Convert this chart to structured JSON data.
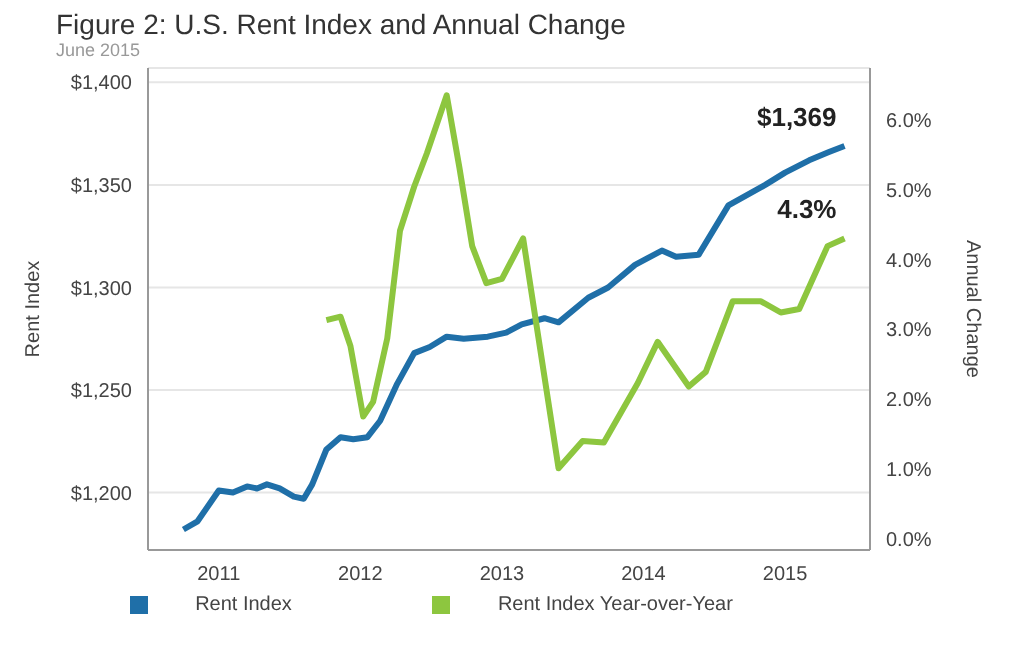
{
  "chart_data": {
    "type": "line",
    "title": "Figure 2: U.S. Rent Index and Annual Change",
    "subtitle": "June 2015",
    "ylabel": "Rent Index",
    "y2label": "Annual Change",
    "xlim": [
      2010.5,
      2015.6
    ],
    "xticks": [
      2011,
      2012,
      2013,
      2014,
      2015
    ],
    "ylim": [
      1172,
      1407
    ],
    "yticks": [
      {
        "value": 1200,
        "label": "$1,200"
      },
      {
        "value": 1250,
        "label": "$1,250"
      },
      {
        "value": 1300,
        "label": "$1,300"
      },
      {
        "value": 1350,
        "label": "$1,350"
      },
      {
        "value": 1400,
        "label": "$1,400"
      }
    ],
    "y2lim": [
      -0.16,
      6.74
    ],
    "y2ticks": [
      {
        "value": 0,
        "label": "0.0%"
      },
      {
        "value": 1,
        "label": "1.0%"
      },
      {
        "value": 2,
        "label": "2.0%"
      },
      {
        "value": 3,
        "label": "3.0%"
      },
      {
        "value": 4,
        "label": "4.0%"
      },
      {
        "value": 5,
        "label": "5.0%"
      },
      {
        "value": 6,
        "label": "6.0%"
      }
    ],
    "grid": "y",
    "legend": "bottom",
    "marker": "none",
    "line_style": "solid",
    "series": [
      {
        "name": "Rent Index",
        "color": "#1f6fa8",
        "x": [
          2010.75,
          2010.85,
          2011.0,
          2011.1,
          2011.2,
          2011.27,
          2011.34,
          2011.43,
          2011.53,
          2011.6,
          2011.66,
          2011.76,
          2011.86,
          2011.95,
          2012.05,
          2012.14,
          2012.26,
          2012.38,
          2012.49,
          2012.61,
          2012.73,
          2012.9,
          2013.03,
          2013.14,
          2013.3,
          2013.4,
          2013.61,
          2013.75,
          2013.94,
          2014.13,
          2014.23,
          2014.39,
          2014.6,
          2014.86,
          2015.0,
          2015.17,
          2015.31,
          2015.42
        ],
        "values": [
          1182,
          1186,
          1201,
          1200,
          1203,
          1202,
          1204,
          1202,
          1198,
          1197,
          1204,
          1221,
          1227,
          1226,
          1227,
          1235,
          1253,
          1268,
          1271,
          1276,
          1275,
          1276,
          1278,
          1282,
          1285,
          1283,
          1295,
          1300,
          1311,
          1318,
          1315,
          1316,
          1340,
          1350,
          1356,
          1362,
          1366,
          1369
        ],
        "value_labels": [
          null,
          null,
          null,
          null,
          null,
          null,
          null,
          null,
          null,
          null,
          null,
          null,
          null,
          null,
          null,
          null,
          null,
          null,
          null,
          null,
          null,
          null,
          null,
          null,
          null,
          null,
          null,
          null,
          null,
          null,
          null,
          null,
          null,
          null,
          null,
          null,
          null,
          "$1,369"
        ]
      },
      {
        "name": "Rent Index Year-over-Year",
        "color": "#8dc63f",
        "axis": "y2",
        "x": [
          2011.76,
          2011.86,
          2011.93,
          2012.02,
          2012.09,
          2012.19,
          2012.28,
          2012.38,
          2012.47,
          2012.61,
          2012.7,
          2012.79,
          2012.89,
          2013.0,
          2013.15,
          2013.4,
          2013.57,
          2013.72,
          2013.96,
          2014.1,
          2014.32,
          2014.44,
          2014.63,
          2014.83,
          2014.97,
          2015.1,
          2015.3,
          2015.42
        ],
        "values": [
          3.13,
          3.18,
          2.76,
          1.75,
          1.96,
          2.87,
          4.41,
          5.04,
          5.52,
          6.35,
          5.31,
          4.19,
          3.66,
          3.72,
          4.3,
          1.01,
          1.4,
          1.38,
          2.23,
          2.82,
          2.18,
          2.39,
          3.4,
          3.4,
          3.24,
          3.29,
          4.19,
          4.3
        ],
        "value_labels": [
          null,
          null,
          null,
          null,
          null,
          null,
          null,
          null,
          null,
          null,
          null,
          null,
          null,
          null,
          null,
          null,
          null,
          null,
          null,
          null,
          null,
          null,
          null,
          null,
          null,
          null,
          null,
          "4.3%"
        ]
      }
    ]
  }
}
